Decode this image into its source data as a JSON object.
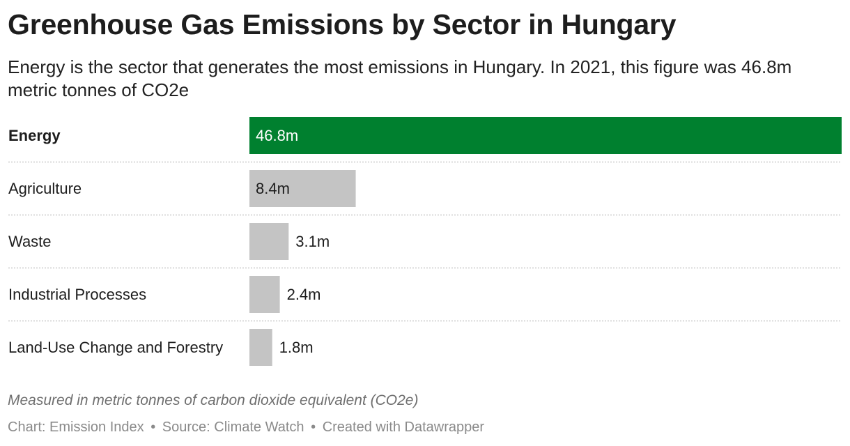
{
  "header": {
    "title": "Greenhouse Gas Emissions by Sector in Hungary",
    "subtitle": "Energy is the sector that generates the most emissions in Hungary. In 2021, this figure was 46.8m metric tonnes of CO2e"
  },
  "chart_data": {
    "type": "bar",
    "orientation": "horizontal",
    "categories": [
      "Energy",
      "Agriculture",
      "Waste",
      "Industrial Processes",
      "Land-Use Change and Forestry"
    ],
    "values": [
      46.8,
      8.4,
      3.1,
      2.4,
      1.8
    ],
    "value_labels": [
      "46.8m",
      "8.4m",
      "3.1m",
      "2.4m",
      "1.8m"
    ],
    "highlight_category": "Energy",
    "colors": {
      "highlight": "#00802f",
      "default": "#c4c4c4",
      "divider": "#cccccc"
    },
    "xlim": [
      0,
      46.8
    ],
    "grid": false
  },
  "footer": {
    "notes": "Measured in metric tonnes of carbon dioxide equivalent (CO2e)",
    "chart_credit": "Chart: Emission Index",
    "source": "Source: Climate Watch",
    "created_with": "Created with Datawrapper",
    "separator": "•"
  }
}
